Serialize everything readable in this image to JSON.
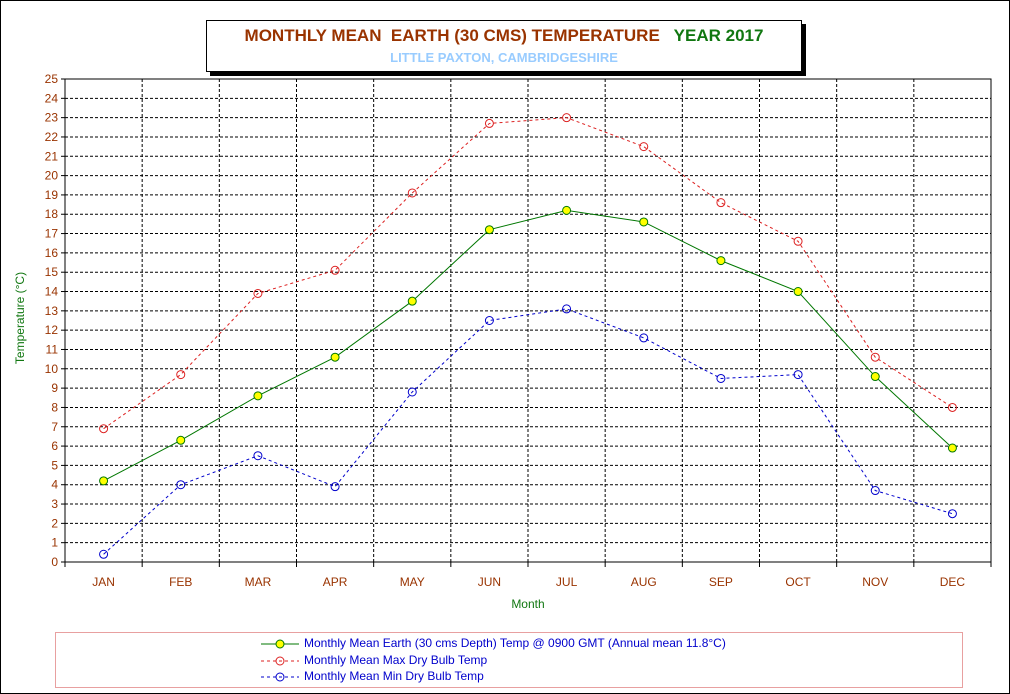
{
  "title": {
    "main": "MONTHLY MEAN  EARTH (30 CMS) TEMPERATURE",
    "year": "YEAR 2017",
    "subtitle": "LITTLE PAXTON, CAMBRIDGESHIRE"
  },
  "colors": {
    "title_main": "#993300",
    "title_year": "#117711",
    "subtitle": "#99ccff",
    "earth_line": "#007700",
    "earth_marker": "#ffff00",
    "max_line": "#dd2222",
    "min_line": "#0000cc",
    "axis_text": "#993300",
    "axis_title": "#117711"
  },
  "chart_data": {
    "type": "line",
    "xlabel": "Month",
    "ylabel": "Temperature (°C)",
    "ylim": [
      0,
      25
    ],
    "yticks": [
      0,
      1,
      2,
      3,
      4,
      5,
      6,
      7,
      8,
      9,
      10,
      11,
      12,
      13,
      14,
      15,
      16,
      17,
      18,
      19,
      20,
      21,
      22,
      23,
      24,
      25
    ],
    "grid": true,
    "legend_position": "bottom",
    "categories": [
      "JAN",
      "FEB",
      "MAR",
      "APR",
      "MAY",
      "JUN",
      "JUL",
      "AUG",
      "SEP",
      "OCT",
      "NOV",
      "DEC"
    ],
    "series": [
      {
        "name": "Monthly Mean Earth (30 cms Depth) Temp @ 0900 GMT (Annual mean 11.8°C)",
        "values": [
          4.2,
          6.3,
          8.6,
          10.6,
          13.5,
          17.2,
          18.2,
          17.6,
          15.6,
          14.0,
          9.6,
          5.9
        ],
        "style": "solid",
        "marker": "filled-circle"
      },
      {
        "name": "Monthly Mean Max Dry Bulb Temp",
        "values": [
          6.9,
          9.7,
          13.9,
          15.1,
          19.1,
          22.7,
          23.0,
          21.5,
          18.6,
          16.6,
          10.6,
          8.0
        ],
        "style": "dashed",
        "marker": "open-circle"
      },
      {
        "name": "Monthly Mean Min Dry Bulb Temp",
        "values": [
          0.4,
          4.0,
          5.5,
          3.9,
          8.8,
          12.5,
          13.1,
          11.6,
          9.5,
          9.7,
          3.7,
          2.5
        ],
        "style": "dashed",
        "marker": "open-circle"
      }
    ]
  }
}
